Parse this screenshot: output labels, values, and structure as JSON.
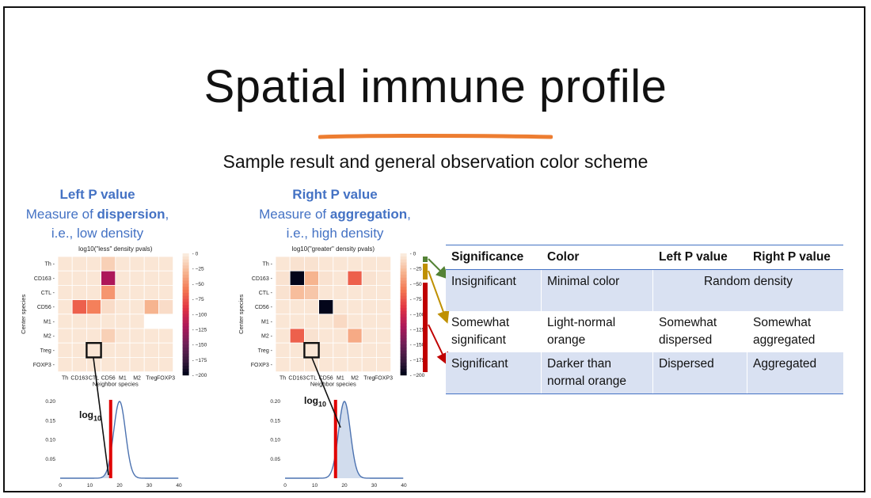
{
  "slide": {
    "title": "Spatial immune profile",
    "subtitle": "Sample result and general observation color scheme",
    "accent_color": "#ed7d31",
    "caption_color": "#4472c4"
  },
  "left_panel": {
    "head": "Left P value",
    "line2_pre": "Measure of ",
    "line2_bold": "dispersion",
    "line2_post": ",",
    "line3": "i.e., low density",
    "heatmap_title": "log10(\"less\" density pvals)",
    "log_label": "log",
    "log_sub": "10"
  },
  "right_panel": {
    "head": "Right P value",
    "line2_pre": "Measure of ",
    "line2_bold": "aggregation",
    "line2_post": ",",
    "line3": "i.e., high density",
    "heatmap_title": "log10(\"greater\" density pvals)",
    "log_label": "log",
    "log_sub": "10"
  },
  "heatmap_axes": {
    "ylabel": "Center species",
    "xlabel": "Neighbor species",
    "rows": [
      "Th",
      "CD163",
      "CTL",
      "CD56",
      "M1",
      "M2",
      "Treg",
      "FOXP3"
    ],
    "cols": [
      "Th",
      "CD163",
      "CTL",
      "CD56",
      "M1",
      "M2",
      "Treg",
      "FOXP3"
    ],
    "colorbar_ticks": [
      "0",
      "−25",
      "−50",
      "−75",
      "−100",
      "−125",
      "−150",
      "−175",
      "−200"
    ],
    "colorbar_range": [
      0,
      -200
    ]
  },
  "chart_data": [
    {
      "type": "heatmap",
      "title": "log10(\"less\" density pvals)",
      "xlabel": "Neighbor species",
      "ylabel": "Center species",
      "rows": [
        "Th",
        "CD163",
        "CTL",
        "CD56",
        "M1",
        "M2",
        "Treg",
        "FOXP3"
      ],
      "cols": [
        "Th",
        "CD163",
        "CTL",
        "CD56",
        "M1",
        "M2",
        "Treg",
        "FOXP3"
      ],
      "values": [
        [
          -3,
          -3,
          -3,
          -15,
          -3,
          -3,
          -3,
          -3
        ],
        [
          -3,
          -3,
          -3,
          -120,
          -3,
          -3,
          -3,
          -3
        ],
        [
          -3,
          -3,
          -3,
          -45,
          -3,
          -3,
          -3,
          -3
        ],
        [
          -3,
          -70,
          -55,
          -8,
          -3,
          -3,
          -30,
          -8
        ],
        [
          -3,
          -3,
          -3,
          -3,
          -3,
          -3,
          null,
          null
        ],
        [
          -3,
          -3,
          -3,
          -15,
          -3,
          -3,
          -3,
          -3
        ],
        [
          -3,
          -3,
          -3,
          -3,
          -3,
          -3,
          -3,
          -3
        ],
        [
          -3,
          -3,
          -3,
          -3,
          -3,
          -3,
          -3,
          -3
        ]
      ],
      "highlight": {
        "row": "Treg",
        "col": "CTL"
      },
      "colorbar_range": [
        0,
        -200
      ]
    },
    {
      "type": "heatmap",
      "title": "log10(\"greater\" density pvals)",
      "xlabel": "Neighbor species",
      "ylabel": "Center species",
      "rows": [
        "Th",
        "CD163",
        "CTL",
        "CD56",
        "M1",
        "M2",
        "Treg",
        "FOXP3"
      ],
      "cols": [
        "Th",
        "CD163",
        "CTL",
        "CD56",
        "M1",
        "M2",
        "Treg",
        "FOXP3"
      ],
      "values": [
        [
          -3,
          -5,
          -5,
          -3,
          -3,
          -3,
          -3,
          -3
        ],
        [
          -5,
          -200,
          -30,
          -5,
          -3,
          -70,
          -5,
          -3
        ],
        [
          -5,
          -25,
          -20,
          -3,
          -3,
          -3,
          -3,
          -3
        ],
        [
          -3,
          -3,
          -3,
          -200,
          -3,
          -3,
          -3,
          -3
        ],
        [
          -3,
          -3,
          -3,
          -3,
          -10,
          -3,
          -3,
          -3
        ],
        [
          -3,
          -70,
          -5,
          -3,
          -3,
          -35,
          -3,
          -3
        ],
        [
          -3,
          -3,
          -3,
          -3,
          -3,
          -3,
          -3,
          -3
        ],
        [
          -3,
          -3,
          -3,
          -3,
          -3,
          -3,
          -3,
          -3
        ]
      ],
      "highlight": {
        "row": "Treg",
        "col": "CTL"
      },
      "colorbar_range": [
        0,
        -200
      ]
    },
    {
      "type": "area",
      "x_ticks": [
        "0",
        "10",
        "20",
        "30",
        "40"
      ],
      "y_ticks": [
        "0.20",
        "0.15",
        "0.10",
        "0.05"
      ],
      "xlim": [
        0,
        40
      ],
      "ylim": [
        0,
        0.2
      ],
      "distribution": {
        "mean": 20,
        "sd": 2,
        "peak": 0.2
      },
      "marker_x": 17,
      "shaded": "left"
    },
    {
      "type": "area",
      "x_ticks": [
        "0",
        "10",
        "20",
        "30",
        "40"
      ],
      "y_ticks": [
        "0.20",
        "0.15",
        "0.10",
        "0.05"
      ],
      "xlim": [
        0,
        40
      ],
      "ylim": [
        0,
        0.2
      ],
      "distribution": {
        "mean": 20,
        "sd": 2,
        "peak": 0.2
      },
      "marker_x": 17,
      "shaded": "right"
    }
  ],
  "table": {
    "headers": [
      "Significance",
      "Color",
      "Left P value",
      "Right P value"
    ],
    "rows": [
      {
        "significance": "Insignificant",
        "color": "Minimal color",
        "merged": "Random density"
      },
      {
        "significance": "Somewhat significant",
        "color": "Light-normal orange",
        "left": "Somewhat dispersed",
        "right": "Somewhat aggregated"
      },
      {
        "significance": "Significant",
        "color": "Darker than normal orange",
        "left": "Dispersed",
        "right": "Aggregated"
      }
    ]
  },
  "bracket_colors": {
    "insignificant": "#548235",
    "somewhat": "#bf9000",
    "significant": "#c00000"
  }
}
